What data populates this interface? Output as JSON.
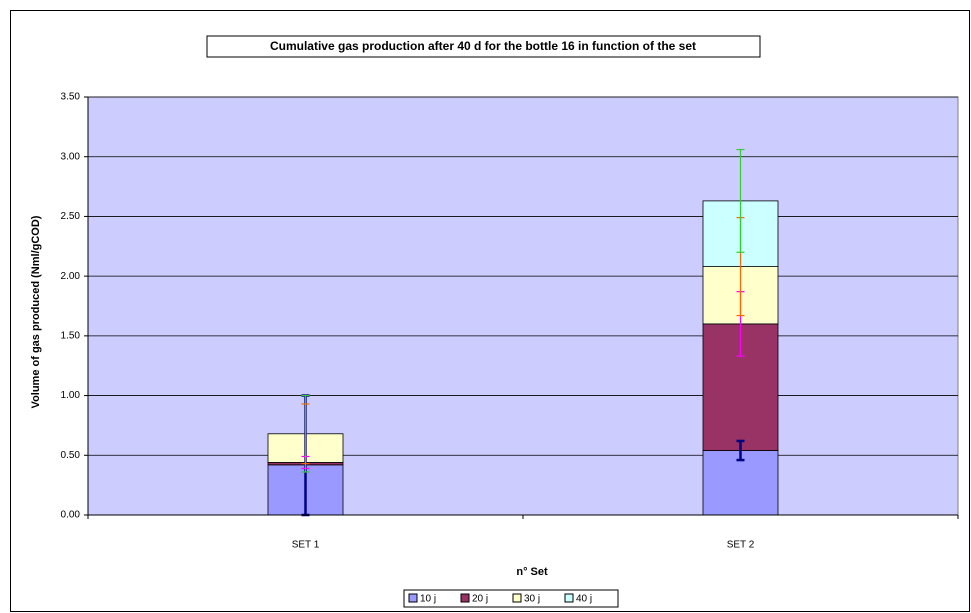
{
  "chart_data": {
    "type": "stacked_bar",
    "title": "Cumulative gas production after 40 d for the bottle 16 in function of the set",
    "x_label": "n° Set",
    "y_label": "Volume of gas produced (Nml/gCOD)",
    "categories": [
      "SET 1",
      "SET 2"
    ],
    "series": [
      {
        "name": "10 j",
        "color": "#9999ff",
        "error_color": "#000080",
        "values": [
          0.42,
          0.54
        ],
        "errors": [
          0.58,
          0.08
        ]
      },
      {
        "name": "20 j",
        "color": "#993366",
        "error_color": "#ff00ff",
        "values": [
          0.02,
          1.06
        ],
        "errors": [
          0.05,
          0.27
        ]
      },
      {
        "name": "30 j",
        "color": "#ffffcc",
        "error_color": "#ff6600",
        "values": [
          0.24,
          0.48
        ],
        "errors": [
          0.25,
          0.41
        ]
      },
      {
        "name": "40 j",
        "color": "#ccffff",
        "error_color": "#33cc33",
        "values": [
          0,
          0.55
        ],
        "errors": [
          0.32,
          0.43
        ]
      }
    ],
    "ylim": [
      0,
      3.5
    ],
    "yticks": [
      {
        "value": 0,
        "label": "0.00"
      },
      {
        "value": 0.5,
        "label": "0.50"
      },
      {
        "value": 1,
        "label": "1.00"
      },
      {
        "value": 1.5,
        "label": "1.50"
      },
      {
        "value": 2,
        "label": "2.00"
      },
      {
        "value": 2.5,
        "label": "2.50"
      },
      {
        "value": 3,
        "label": "3.00"
      },
      {
        "value": 3.5,
        "label": "3.50"
      }
    ],
    "grid": true,
    "plot_background": "#ccccff",
    "legend": "bottom"
  }
}
